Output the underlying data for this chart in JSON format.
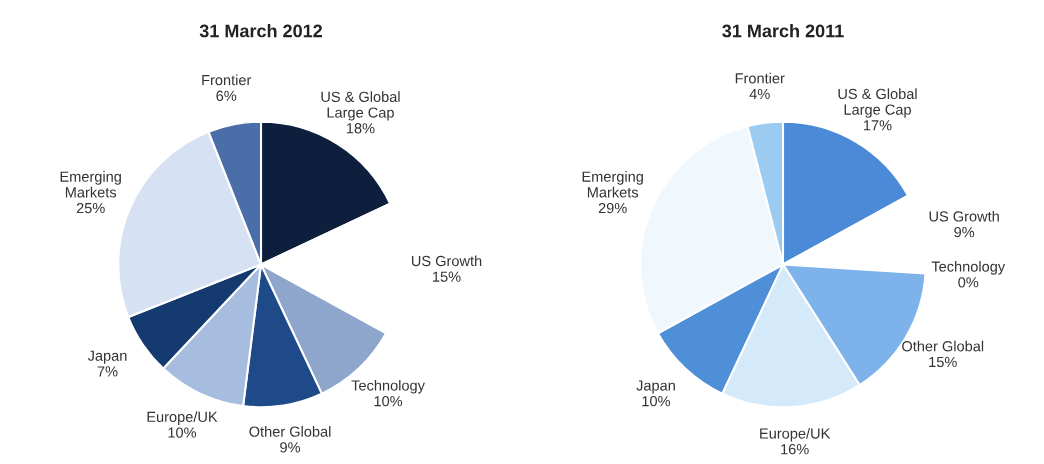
{
  "chart_data": [
    {
      "type": "pie",
      "title": "31 March 2012",
      "categories": [
        "US & Global\nLarge Cap",
        "US Growth",
        "Technology",
        "Other Global",
        "Europe/UK",
        "Japan",
        "Emerging\nMarkets",
        "Frontier"
      ],
      "values": [
        18,
        15,
        10,
        9,
        10,
        7,
        25,
        6
      ],
      "value_labels": [
        "18%",
        "15%",
        "10%",
        "9%",
        "10%",
        "7%",
        "25%",
        "6%"
      ],
      "colors": [
        "#0d1f3c",
        "#ffffff",
        "#8fa6cc",
        "#1e4a8a",
        "#a7bde0",
        "#143a70",
        "#d6e2f3",
        "#4a6ea8"
      ]
    },
    {
      "type": "pie",
      "title": "31 March 2011",
      "categories": [
        "US & Global\nLarge Cap",
        "US Growth",
        "Technology",
        "Other Global",
        "Europe/UK",
        "Japan",
        "Emerging\nMarkets",
        "Frontier"
      ],
      "values": [
        17,
        9,
        0,
        15,
        16,
        10,
        29,
        4
      ],
      "value_labels": [
        "17%",
        "9%",
        "0%",
        "15%",
        "16%",
        "10%",
        "29%",
        "4%"
      ],
      "colors": [
        "#4a8ad6",
        "#ffffff",
        "#7ab0e6",
        "#7db3ea",
        "#d4e9f9",
        "#4f8fd8",
        "#f0f8fe",
        "#9ccbf2"
      ]
    }
  ]
}
